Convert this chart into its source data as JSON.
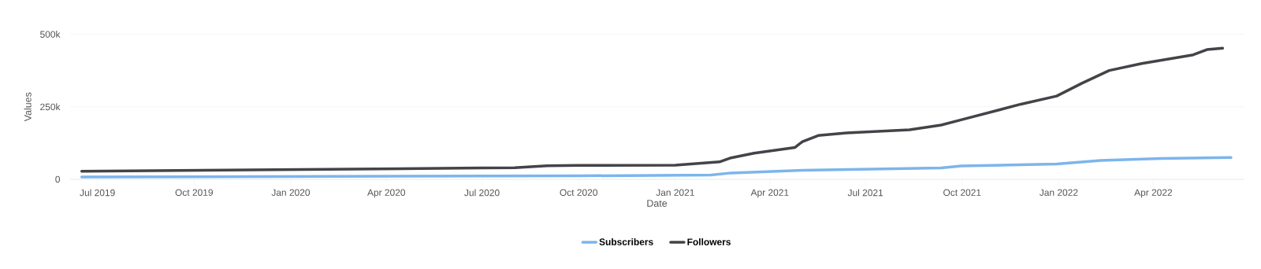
{
  "chart_data": {
    "type": "line",
    "xlabel": "Date",
    "ylabel": "Values",
    "xlim": [
      "2019-06-05",
      "2022-06-26"
    ],
    "ylim": [
      0,
      500000
    ],
    "xticks": [
      {
        "value": "2019-07-01",
        "label": "Jul 2019"
      },
      {
        "value": "2019-10-01",
        "label": "Oct 2019"
      },
      {
        "value": "2020-01-01",
        "label": "Jan 2020"
      },
      {
        "value": "2020-04-01",
        "label": "Apr 2020"
      },
      {
        "value": "2020-07-01",
        "label": "Jul 2020"
      },
      {
        "value": "2020-10-01",
        "label": "Oct 2020"
      },
      {
        "value": "2021-01-01",
        "label": "Jan 2021"
      },
      {
        "value": "2021-04-01",
        "label": "Apr 2021"
      },
      {
        "value": "2021-07-01",
        "label": "Jul 2021"
      },
      {
        "value": "2021-10-01",
        "label": "Oct 2021"
      },
      {
        "value": "2022-01-01",
        "label": "Jan 2022"
      },
      {
        "value": "2022-04-01",
        "label": "Apr 2022"
      }
    ],
    "yticks": [
      {
        "value": 0,
        "label": "0"
      },
      {
        "value": 250000,
        "label": "250k"
      },
      {
        "value": 500000,
        "label": "500k"
      }
    ],
    "grid": "y",
    "legend": "bottom",
    "marker": "none",
    "line_style": "solid",
    "series": [
      {
        "name": "Subscribers",
        "color": "#7cb5ec",
        "x": [
          "2019-06-16",
          "2020-10-01",
          "2021-02-04",
          "2021-02-23",
          "2021-05-02",
          "2021-09-11",
          "2021-09-30",
          "2021-12-30",
          "2022-02-10",
          "2022-04-08",
          "2022-06-14"
        ],
        "values": [
          8000,
          12000,
          15000,
          22000,
          31000,
          39000,
          46000,
          53000,
          65000,
          72000,
          75000
        ]
      },
      {
        "name": "Followers",
        "color": "#434348",
        "x": [
          "2019-06-16",
          "2020-07-01",
          "2020-08-01",
          "2020-09-01",
          "2020-10-01",
          "2021-01-01",
          "2021-02-12",
          "2021-02-22",
          "2021-03-17",
          "2021-04-25",
          "2021-05-02",
          "2021-05-17",
          "2021-06-13",
          "2021-08-12",
          "2021-09-11",
          "2021-09-30",
          "2021-11-26",
          "2021-12-30",
          "2022-01-23",
          "2022-02-18",
          "2022-03-21",
          "2022-05-09",
          "2022-05-22",
          "2022-06-06"
        ],
        "values": [
          28000,
          39000,
          40000,
          47000,
          48000,
          49000,
          60000,
          73000,
          90000,
          110000,
          130000,
          151000,
          160000,
          171000,
          187000,
          205000,
          259000,
          287000,
          331000,
          375000,
          399000,
          429000,
          447000,
          452000
        ]
      }
    ]
  }
}
